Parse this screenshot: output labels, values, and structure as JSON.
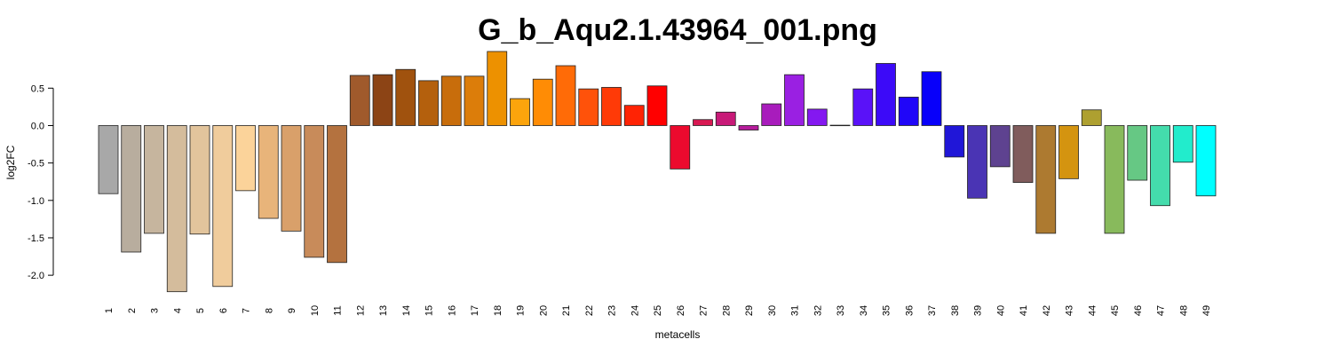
{
  "chart_data": {
    "type": "bar",
    "title": "G_b_Aqu2.1.43964_001.png",
    "xlabel": "metacells",
    "ylabel": "log2FC",
    "ylim": [
      -2.2,
      0.99
    ],
    "yticks": [
      0.5,
      0.0,
      -0.5,
      -1.0,
      -1.5,
      -2.0
    ],
    "ytick_labels": [
      "0.5",
      "0.0",
      "-0.5",
      "-1.0",
      "-1.5",
      "-2.0"
    ],
    "grid": false,
    "legend": "none",
    "categories": [
      "1",
      "2",
      "3",
      "4",
      "5",
      "6",
      "7",
      "8",
      "9",
      "10",
      "11",
      "12",
      "13",
      "14",
      "15",
      "16",
      "17",
      "18",
      "19",
      "20",
      "21",
      "22",
      "23",
      "24",
      "25",
      "26",
      "27",
      "28",
      "29",
      "30",
      "31",
      "32",
      "33",
      "34",
      "35",
      "36",
      "37",
      "38",
      "39",
      "40",
      "41",
      "42",
      "43",
      "44",
      "45",
      "46",
      "47",
      "48",
      "49"
    ],
    "values": [
      -0.91,
      -1.69,
      -1.44,
      -2.22,
      -1.45,
      -2.15,
      -0.87,
      -1.24,
      -1.41,
      -1.76,
      -1.83,
      0.67,
      0.68,
      0.75,
      0.6,
      0.66,
      0.66,
      0.99,
      0.36,
      0.62,
      0.8,
      0.49,
      0.51,
      0.27,
      0.53,
      -0.58,
      0.08,
      0.18,
      -0.06,
      0.29,
      0.68,
      0.22,
      0.005,
      0.49,
      0.83,
      0.38,
      0.72,
      -0.42,
      -0.97,
      -0.55,
      -0.76,
      -1.44,
      -0.71,
      0.21,
      -1.44,
      -0.73,
      -1.07,
      -0.49,
      -0.94
    ],
    "colors": [
      "#a8a8a8",
      "#b8ad9e",
      "#c6b59e",
      "#d4bc9c",
      "#e2c49c",
      "#f0cc9c",
      "#fbd39a",
      "#e8b47a",
      "#d9a06a",
      "#c88b5a",
      "#b4723f",
      "#a05a2c",
      "#8c4415",
      "#a0520e",
      "#b4600d",
      "#c86d0b",
      "#dc7d0a",
      "#ed9100",
      "#fca40c",
      "#ff8c05",
      "#ff6b07",
      "#ff520a",
      "#ff3a07",
      "#ff2304",
      "#ff0000",
      "#ec0a2e",
      "#d81852",
      "#c81a78",
      "#b61c9c",
      "#a81cbc",
      "#9a20e2",
      "#8418f0",
      "#6c14f4",
      "#5a12f8",
      "#3c0af8",
      "#2006f8",
      "#0800fa",
      "#2016d8",
      "#4a34b4",
      "#5e4290",
      "#805c5c",
      "#ad7a30",
      "#d49410",
      "#aea030",
      "#88ba5c",
      "#66c884",
      "#44dcac",
      "#22eccc",
      "#00ffff"
    ]
  }
}
